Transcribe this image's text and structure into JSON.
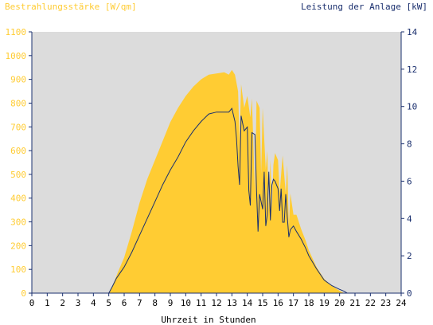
{
  "chart_data": {
    "type": "area",
    "left_title": "Bestrahlungsstärke [W/qm]",
    "right_title": "Leistung der Anlage [kW]",
    "xlabel": "Uhrzeit in Stunden",
    "x_ticks": [
      "0",
      "1",
      "2",
      "3",
      "4",
      "5",
      "6",
      "7",
      "8",
      "9",
      "10",
      "11",
      "12",
      "13",
      "14",
      "15",
      "16",
      "17",
      "18",
      "19",
      "20",
      "21",
      "22",
      "23",
      "24"
    ],
    "y_left_ticks": [
      "0",
      "100",
      "200",
      "300",
      "400",
      "500",
      "600",
      "700",
      "800",
      "900",
      "1000",
      "1100"
    ],
    "y_right_ticks": [
      "0",
      "2",
      "4",
      "6",
      "8",
      "10",
      "12",
      "14"
    ],
    "xlim": [
      0,
      24
    ],
    "ylim_left": [
      0,
      1100
    ],
    "ylim_right": [
      0,
      14
    ],
    "grid": false,
    "colors": {
      "plot_background": "#dcdcdc",
      "irradiance_fill": "#ffcc33",
      "power_line": "#1a2f6e",
      "left_axis_text": "#ffcc33",
      "right_axis_text": "#1a2f6e",
      "axis_line": "#1a2f6e",
      "x_text": "#000000"
    },
    "series": [
      {
        "axis": "left",
        "style": "area",
        "points": [
          [
            0,
            0
          ],
          [
            5.0,
            0
          ],
          [
            5.3,
            40
          ],
          [
            5.6,
            90
          ],
          [
            6.0,
            150
          ],
          [
            6.5,
            260
          ],
          [
            7.0,
            380
          ],
          [
            7.5,
            480
          ],
          [
            8.0,
            560
          ],
          [
            8.5,
            640
          ],
          [
            9.0,
            720
          ],
          [
            9.5,
            780
          ],
          [
            10.0,
            830
          ],
          [
            10.5,
            870
          ],
          [
            11.0,
            900
          ],
          [
            11.5,
            920
          ],
          [
            12.0,
            925
          ],
          [
            12.5,
            930
          ],
          [
            12.8,
            920
          ],
          [
            13.0,
            940
          ],
          [
            13.2,
            920
          ],
          [
            13.4,
            850
          ],
          [
            13.5,
            640
          ],
          [
            13.6,
            880
          ],
          [
            13.8,
            780
          ],
          [
            14.0,
            830
          ],
          [
            14.2,
            740
          ],
          [
            14.3,
            820
          ],
          [
            14.5,
            420
          ],
          [
            14.6,
            810
          ],
          [
            14.8,
            780
          ],
          [
            14.9,
            500
          ],
          [
            15.0,
            780
          ],
          [
            15.2,
            520
          ],
          [
            15.3,
            600
          ],
          [
            15.4,
            350
          ],
          [
            15.5,
            560
          ],
          [
            15.6,
            360
          ],
          [
            15.7,
            540
          ],
          [
            15.8,
            590
          ],
          [
            16.0,
            560
          ],
          [
            16.1,
            420
          ],
          [
            16.2,
            500
          ],
          [
            16.3,
            580
          ],
          [
            16.5,
            420
          ],
          [
            16.6,
            540
          ],
          [
            16.7,
            280
          ],
          [
            16.8,
            420
          ],
          [
            17.0,
            330
          ],
          [
            17.2,
            330
          ],
          [
            17.5,
            270
          ],
          [
            17.8,
            220
          ],
          [
            18.0,
            180
          ],
          [
            18.5,
            110
          ],
          [
            19.0,
            60
          ],
          [
            19.5,
            30
          ],
          [
            20.0,
            10
          ],
          [
            20.3,
            0
          ],
          [
            24,
            0
          ]
        ]
      },
      {
        "axis": "right",
        "style": "line",
        "points": [
          [
            0,
            0
          ],
          [
            5.0,
            0
          ],
          [
            5.2,
            0.3
          ],
          [
            5.5,
            0.8
          ],
          [
            6.0,
            1.4
          ],
          [
            6.5,
            2.2
          ],
          [
            7.0,
            3.1
          ],
          [
            7.5,
            4.0
          ],
          [
            8.0,
            4.9
          ],
          [
            8.5,
            5.8
          ],
          [
            9.0,
            6.6
          ],
          [
            9.5,
            7.3
          ],
          [
            10.0,
            8.1
          ],
          [
            10.5,
            8.7
          ],
          [
            11.0,
            9.2
          ],
          [
            11.5,
            9.6
          ],
          [
            12.0,
            9.7
          ],
          [
            12.5,
            9.7
          ],
          [
            12.8,
            9.7
          ],
          [
            13.0,
            9.9
          ],
          [
            13.2,
            9.2
          ],
          [
            13.3,
            8.3
          ],
          [
            13.4,
            6.8
          ],
          [
            13.5,
            5.8
          ],
          [
            13.6,
            9.5
          ],
          [
            13.8,
            8.7
          ],
          [
            14.0,
            8.9
          ],
          [
            14.1,
            5.5
          ],
          [
            14.2,
            4.7
          ],
          [
            14.3,
            8.6
          ],
          [
            14.5,
            8.5
          ],
          [
            14.6,
            5.5
          ],
          [
            14.7,
            3.3
          ],
          [
            14.8,
            5.3
          ],
          [
            15.0,
            4.5
          ],
          [
            15.1,
            6.5
          ],
          [
            15.2,
            3.6
          ],
          [
            15.3,
            4.2
          ],
          [
            15.4,
            6.5
          ],
          [
            15.5,
            3.9
          ],
          [
            15.6,
            5.8
          ],
          [
            15.7,
            6.1
          ],
          [
            15.8,
            6.0
          ],
          [
            16.0,
            5.6
          ],
          [
            16.1,
            4.4
          ],
          [
            16.2,
            5.6
          ],
          [
            16.3,
            3.8
          ],
          [
            16.4,
            3.8
          ],
          [
            16.5,
            5.3
          ],
          [
            16.6,
            4.1
          ],
          [
            16.7,
            3.0
          ],
          [
            16.8,
            3.4
          ],
          [
            17.0,
            3.6
          ],
          [
            17.2,
            3.3
          ],
          [
            17.5,
            2.9
          ],
          [
            17.8,
            2.4
          ],
          [
            18.0,
            2.0
          ],
          [
            18.5,
            1.3
          ],
          [
            19.0,
            0.7
          ],
          [
            19.5,
            0.4
          ],
          [
            20.0,
            0.2
          ],
          [
            20.3,
            0.1
          ],
          [
            20.5,
            0
          ],
          [
            24,
            0
          ]
        ]
      }
    ]
  }
}
